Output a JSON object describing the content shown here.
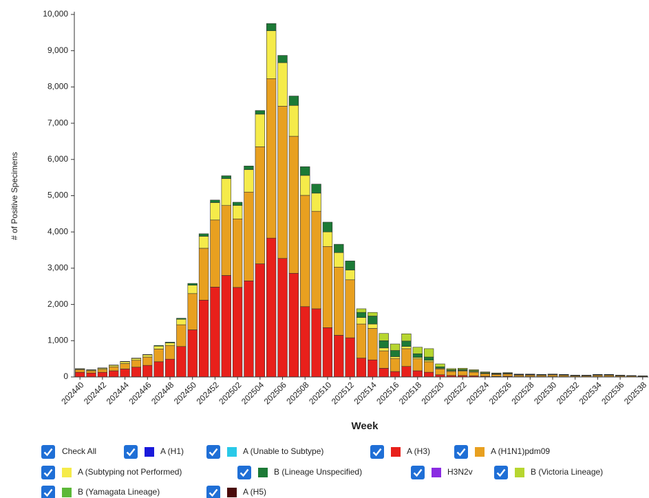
{
  "chart_data": {
    "type": "stacked_bar",
    "x_label": "Week",
    "y_label": "# of Positive Specimens",
    "check_all_label": "Check All",
    "categories": [
      "202440",
      null,
      "202442",
      null,
      "202444",
      null,
      "202446",
      null,
      "202448",
      null,
      "202450",
      null,
      "202452",
      null,
      "202502",
      null,
      "202504",
      null,
      "202506",
      null,
      "202508",
      null,
      "202510",
      null,
      "202512",
      null,
      "202514",
      null,
      "202516",
      null,
      "202518",
      null,
      "202520",
      null,
      "202522",
      null,
      "202524",
      null,
      "202526",
      null,
      "202528",
      null,
      "202530",
      null,
      "202532",
      null,
      "202534",
      null,
      "202536",
      null,
      "202538"
    ],
    "ylim": [
      0,
      10000
    ],
    "yticks": [
      0,
      {
        "value": 1000,
        "label": "1,000"
      },
      {
        "value": 2000,
        "label": "2,000"
      },
      {
        "value": 3000,
        "label": "3,000"
      },
      {
        "value": 4000,
        "label": "4,000"
      },
      {
        "value": 5000,
        "label": "5,000"
      },
      {
        "value": 6000,
        "label": "6,000"
      },
      {
        "value": 7000,
        "label": "7,000"
      },
      {
        "value": 8000,
        "label": "8,000"
      },
      {
        "value": 9000,
        "label": "9,000"
      },
      {
        "value": 10000,
        "label": "10,000"
      }
    ],
    "series": [
      {
        "name": "A (H1)",
        "color": "#1a1adb",
        "values": [
          0,
          0,
          0,
          0,
          0,
          0,
          0,
          0,
          0,
          0,
          0,
          0,
          0,
          0,
          0,
          0,
          0,
          0,
          0,
          0,
          0,
          0,
          0,
          0,
          0,
          0,
          0,
          0,
          0,
          0,
          0,
          0,
          0,
          0,
          0,
          0,
          0,
          0,
          0,
          0,
          0,
          0,
          0,
          0,
          0,
          0,
          0,
          0,
          0,
          0,
          0
        ]
      },
      {
        "name": "A (Unable to Subtype)",
        "color": "#29c9e8",
        "values": [
          0,
          0,
          0,
          0,
          0,
          0,
          0,
          0,
          0,
          0,
          0,
          0,
          0,
          0,
          0,
          0,
          0,
          0,
          0,
          0,
          0,
          0,
          0,
          0,
          0,
          0,
          0,
          0,
          0,
          0,
          0,
          0,
          0,
          0,
          0,
          0,
          0,
          0,
          0,
          0,
          0,
          0,
          0,
          0,
          0,
          0,
          0,
          0,
          0,
          0,
          0
        ]
      },
      {
        "name": "A (H3)",
        "color": "#e8201b",
        "values": [
          130,
          110,
          130,
          170,
          220,
          270,
          320,
          420,
          490,
          840,
          1300,
          2120,
          2480,
          2800,
          2470,
          2650,
          3120,
          3830,
          3270,
          2860,
          1940,
          1880,
          1360,
          1150,
          1080,
          520,
          470,
          240,
          150,
          290,
          170,
          130,
          60,
          40,
          40,
          30,
          20,
          15,
          20,
          10,
          10,
          10,
          10,
          10,
          5,
          5,
          10,
          10,
          5,
          5,
          5
        ]
      },
      {
        "name": "A (H1N1)pdm09",
        "color": "#e8a020",
        "values": [
          70,
          60,
          80,
          110,
          150,
          190,
          230,
          350,
          380,
          600,
          1000,
          1430,
          1850,
          1930,
          1890,
          2450,
          3230,
          4400,
          4200,
          3780,
          3070,
          2690,
          2240,
          1880,
          1600,
          940,
          870,
          480,
          360,
          490,
          330,
          290,
          160,
          110,
          120,
          100,
          70,
          55,
          60,
          40,
          40,
          35,
          45,
          35,
          25,
          25,
          35,
          35,
          25,
          20,
          15
        ]
      },
      {
        "name": "A (Subtyping not Performed)",
        "color": "#f5eb4a",
        "values": [
          20,
          20,
          30,
          40,
          50,
          50,
          60,
          80,
          70,
          150,
          230,
          330,
          480,
          740,
          370,
          620,
          900,
          1320,
          1200,
          850,
          550,
          500,
          400,
          400,
          270,
          180,
          120,
          80,
          50,
          60,
          40,
          40,
          20,
          20,
          20,
          20,
          10,
          10,
          10,
          10,
          10,
          10,
          10,
          10,
          5,
          5,
          10,
          10,
          5,
          5,
          5
        ]
      },
      {
        "name": "B (Lineage Unspecified)",
        "color": "#1c7a36",
        "values": [
          10,
          10,
          10,
          10,
          10,
          10,
          10,
          20,
          20,
          30,
          50,
          70,
          70,
          80,
          90,
          100,
          100,
          200,
          200,
          260,
          240,
          250,
          270,
          230,
          250,
          140,
          220,
          200,
          170,
          150,
          100,
          90,
          40,
          30,
          30,
          25,
          20,
          15,
          15,
          10,
          10,
          10,
          10,
          10,
          10,
          10,
          10,
          10,
          10,
          5,
          3
        ]
      },
      {
        "name": "H3N2v",
        "color": "#8a2be2",
        "values": [
          0,
          0,
          0,
          0,
          0,
          0,
          0,
          0,
          0,
          0,
          0,
          0,
          0,
          0,
          0,
          0,
          0,
          0,
          0,
          0,
          0,
          0,
          0,
          0,
          0,
          0,
          0,
          0,
          0,
          0,
          0,
          0,
          0,
          0,
          0,
          0,
          0,
          0,
          0,
          0,
          0,
          0,
          0,
          0,
          0,
          0,
          0,
          0,
          0,
          0,
          0
        ]
      },
      {
        "name": "B (Victoria Lineage)",
        "color": "#b7d630",
        "values": [
          0,
          0,
          0,
          0,
          0,
          0,
          0,
          0,
          0,
          0,
          0,
          0,
          0,
          0,
          0,
          0,
          0,
          0,
          0,
          0,
          0,
          0,
          0,
          0,
          0,
          100,
          100,
          200,
          180,
          200,
          180,
          230,
          80,
          30,
          30,
          25,
          20,
          15,
          15,
          10,
          10,
          5,
          5,
          5,
          5,
          5,
          5,
          5,
          5,
          5,
          2
        ]
      },
      {
        "name": "B (Yamagata Lineage)",
        "color": "#5cb838",
        "values": [
          0,
          0,
          0,
          0,
          0,
          0,
          0,
          0,
          0,
          0,
          0,
          0,
          0,
          0,
          0,
          0,
          0,
          0,
          0,
          0,
          0,
          0,
          0,
          0,
          0,
          0,
          0,
          0,
          0,
          0,
          0,
          0,
          0,
          0,
          0,
          0,
          0,
          0,
          0,
          0,
          0,
          0,
          0,
          0,
          0,
          0,
          0,
          0,
          0,
          0,
          0
        ]
      },
      {
        "name": "A (H5)",
        "color": "#4a0a0a",
        "values": [
          0,
          0,
          0,
          0,
          0,
          0,
          0,
          0,
          0,
          0,
          0,
          0,
          0,
          0,
          0,
          0,
          0,
          0,
          0,
          0,
          0,
          0,
          0,
          0,
          0,
          0,
          0,
          0,
          0,
          0,
          0,
          0,
          0,
          0,
          0,
          0,
          0,
          0,
          0,
          0,
          0,
          0,
          0,
          0,
          0,
          0,
          0,
          0,
          0,
          0,
          0
        ]
      }
    ]
  }
}
